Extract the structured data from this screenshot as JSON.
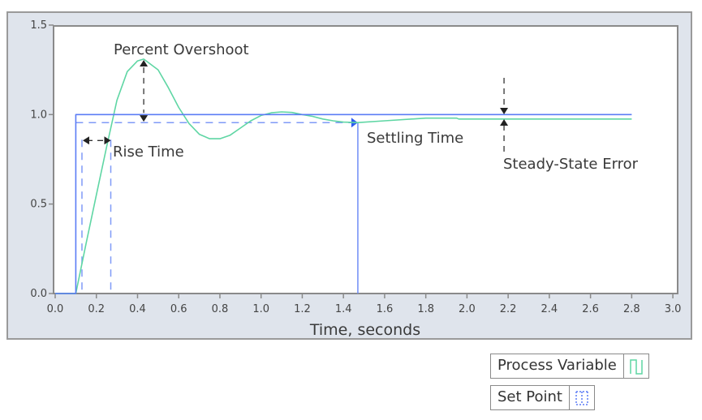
{
  "chart_data": {
    "type": "line",
    "title": "",
    "xlabel": "Time, seconds",
    "ylabel": "",
    "xlim": [
      0.0,
      3.0
    ],
    "ylim": [
      0.0,
      1.5
    ],
    "x_ticks": [
      "0.0",
      "0.2",
      "0.4",
      "0.6",
      "0.8",
      "1.0",
      "1.2",
      "1.4",
      "1.6",
      "1.8",
      "2.0",
      "2.2",
      "2.4",
      "2.6",
      "2.8",
      "3.0"
    ],
    "y_ticks": [
      "0.0",
      "0.5",
      "1.0",
      "1.5"
    ],
    "grid": false,
    "legend_position": "bottom-right",
    "series": [
      {
        "name": "Process Variable",
        "color": "#5fd6a4",
        "x": [
          0.0,
          0.1,
          0.15,
          0.2,
          0.25,
          0.3,
          0.35,
          0.4,
          0.43,
          0.5,
          0.55,
          0.6,
          0.65,
          0.7,
          0.75,
          0.8,
          0.85,
          0.9,
          0.95,
          1.0,
          1.05,
          1.1,
          1.15,
          1.2,
          1.25,
          1.3,
          1.35,
          1.4,
          1.47,
          1.6,
          1.8,
          1.95,
          1.96,
          2.2,
          2.8
        ],
        "y": [
          0.0,
          0.0,
          0.28,
          0.55,
          0.82,
          1.08,
          1.24,
          1.3,
          1.31,
          1.25,
          1.15,
          1.04,
          0.95,
          0.89,
          0.865,
          0.865,
          0.885,
          0.925,
          0.965,
          0.995,
          1.01,
          1.015,
          1.012,
          1.0,
          0.99,
          0.975,
          0.965,
          0.958,
          0.955,
          0.965,
          0.98,
          0.98,
          0.975,
          0.975,
          0.975
        ]
      },
      {
        "name": "Set Point",
        "color": "#5b7cf5",
        "x": [
          0.0,
          0.1,
          0.1,
          2.8
        ],
        "y": [
          0.0,
          0.0,
          1.0,
          1.0
        ]
      }
    ],
    "annotations": [
      {
        "text": "Percent Overshoot",
        "x": 0.3,
        "y": 1.4
      },
      {
        "text": "Rise Time",
        "x": 0.28,
        "y": 0.8
      },
      {
        "text": "Settling Time",
        "x": 1.5,
        "y": 0.86
      },
      {
        "text": "Steady-State Error",
        "x": 2.18,
        "y": 0.68
      }
    ],
    "reference_lines": {
      "tolerance_band_y": 0.955,
      "rise_time_start": 0.13,
      "rise_time_end": 0.27,
      "settling_time": 1.47,
      "steady_state_error_x": 2.18
    }
  },
  "legend": {
    "items": [
      {
        "label": "Process Variable",
        "icon": "square-wave-icon",
        "color": "#5fd6a4"
      },
      {
        "label": "Set Point",
        "icon": "dotted-box-icon",
        "color": "#5b7cf5"
      }
    ]
  }
}
